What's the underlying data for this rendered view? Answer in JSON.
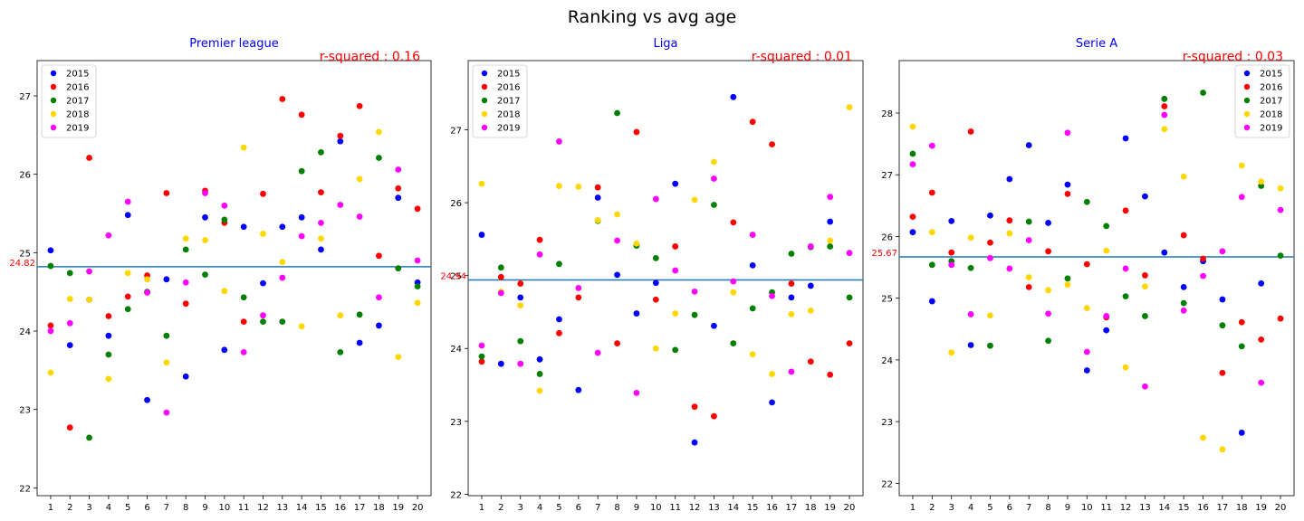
{
  "title": "Ranking vs avg age",
  "colors": {
    "2015": "#0000ff",
    "2016": "#ff0000",
    "2017": "#008000",
    "2018": "#ffd700",
    "2019": "#ff00ff",
    "mean_line": "#1f77b4",
    "subtitle": "#0000ff",
    "r_squared": "#ff0000"
  },
  "chart_data": [
    {
      "type": "scatter",
      "title": "Premier league",
      "r_squared_label": "r-squared : 0.16",
      "mean_value": 24.82,
      "mean_label": "24.82",
      "x": [
        1,
        2,
        3,
        4,
        5,
        6,
        7,
        8,
        9,
        10,
        11,
        12,
        13,
        14,
        15,
        16,
        17,
        18,
        19,
        20
      ],
      "xlim": [
        0.3,
        20.7
      ],
      "ylim": [
        21.9,
        27.45
      ],
      "yticks": [
        22,
        23,
        24,
        25,
        26,
        27
      ],
      "legend": "top-left",
      "series": [
        {
          "name": "2015",
          "values": [
            25.03,
            23.82,
            24.4,
            23.94,
            25.48,
            23.12,
            24.66,
            23.42,
            25.45,
            23.76,
            25.33,
            24.61,
            25.33,
            25.45,
            25.04,
            26.42,
            23.85,
            24.07,
            25.7,
            24.62
          ]
        },
        {
          "name": "2016",
          "values": [
            24.07,
            22.77,
            26.21,
            24.19,
            24.44,
            24.71,
            25.76,
            24.35,
            25.79,
            25.38,
            24.12,
            25.75,
            26.96,
            26.76,
            25.77,
            26.49,
            26.87,
            24.96,
            25.82,
            25.56
          ]
        },
        {
          "name": "2017",
          "values": [
            24.83,
            24.74,
            22.64,
            23.7,
            24.28,
            24.5,
            23.94,
            25.04,
            24.72,
            25.42,
            24.43,
            24.12,
            24.12,
            26.04,
            26.28,
            23.73,
            24.21,
            26.21,
            24.8,
            24.57
          ]
        },
        {
          "name": "2018",
          "values": [
            23.47,
            24.41,
            24.4,
            23.39,
            24.74,
            24.66,
            23.6,
            25.18,
            25.16,
            24.51,
            26.34,
            25.24,
            24.88,
            24.06,
            25.18,
            24.2,
            25.94,
            26.54,
            23.67,
            24.36
          ]
        },
        {
          "name": "2019",
          "values": [
            24.0,
            24.1,
            24.76,
            25.22,
            25.65,
            24.49,
            22.96,
            24.62,
            25.76,
            25.6,
            23.73,
            24.2,
            24.68,
            25.21,
            25.38,
            25.61,
            25.46,
            24.43,
            26.06,
            24.9
          ]
        }
      ]
    },
    {
      "type": "scatter",
      "title": "Liga",
      "r_squared_label": "r-squared : 0.01",
      "mean_value": 24.94,
      "mean_label": "24.94",
      "x": [
        1,
        2,
        3,
        4,
        5,
        6,
        7,
        8,
        9,
        10,
        11,
        12,
        13,
        14,
        15,
        16,
        17,
        18,
        19,
        20
      ],
      "xlim": [
        0.3,
        20.7
      ],
      "ylim": [
        21.98,
        27.95
      ],
      "yticks": [
        22,
        23,
        24,
        25,
        26,
        27
      ],
      "legend": "top-left",
      "series": [
        {
          "name": "2015",
          "values": [
            25.56,
            23.79,
            24.7,
            23.85,
            24.4,
            23.43,
            26.07,
            25.01,
            24.48,
            24.9,
            26.26,
            22.71,
            24.31,
            27.45,
            25.14,
            23.26,
            24.7,
            24.86,
            25.74,
            null
          ]
        },
        {
          "name": "2016",
          "values": [
            23.82,
            24.98,
            24.89,
            25.49,
            24.21,
            24.7,
            26.21,
            24.07,
            26.97,
            24.67,
            25.4,
            23.2,
            23.07,
            25.73,
            27.11,
            26.8,
            24.89,
            23.82,
            23.64,
            24.07
          ]
        },
        {
          "name": "2017",
          "values": [
            23.89,
            25.11,
            24.1,
            23.65,
            25.16,
            null,
            25.75,
            27.23,
            25.41,
            25.24,
            23.98,
            24.46,
            25.97,
            24.07,
            24.55,
            24.77,
            25.3,
            25.39,
            25.4,
            24.7
          ]
        },
        {
          "name": "2018",
          "values": [
            26.26,
            24.78,
            24.59,
            23.42,
            26.23,
            26.22,
            25.76,
            25.84,
            25.44,
            24.0,
            24.48,
            26.04,
            26.56,
            24.77,
            23.92,
            23.65,
            24.47,
            24.52,
            25.48,
            27.31
          ]
        },
        {
          "name": "2019",
          "values": [
            24.04,
            24.76,
            23.79,
            25.29,
            26.84,
            24.83,
            23.94,
            25.48,
            23.39,
            26.05,
            25.07,
            24.78,
            26.33,
            24.92,
            25.56,
            24.72,
            23.68,
            25.4,
            26.08,
            25.31
          ]
        }
      ]
    },
    {
      "type": "scatter",
      "title": "Serie A",
      "r_squared_label": "r-squared : 0.03",
      "mean_value": 25.67,
      "mean_label": "25.67",
      "x": [
        1,
        2,
        3,
        4,
        5,
        6,
        7,
        8,
        9,
        10,
        11,
        12,
        13,
        14,
        15,
        16,
        17,
        18,
        19,
        20
      ],
      "xlim": [
        0.3,
        20.7
      ],
      "ylim": [
        21.8,
        28.85
      ],
      "yticks": [
        22,
        23,
        24,
        25,
        26,
        27,
        28
      ],
      "legend": "top-right",
      "series": [
        {
          "name": "2015",
          "values": [
            26.07,
            24.95,
            26.25,
            24.24,
            26.34,
            26.93,
            27.48,
            26.22,
            26.84,
            23.83,
            24.48,
            27.59,
            26.65,
            25.74,
            25.18,
            25.6,
            24.98,
            22.82,
            25.24,
            null
          ]
        },
        {
          "name": "2016",
          "values": [
            26.32,
            26.71,
            25.74,
            27.7,
            25.9,
            26.26,
            25.18,
            25.76,
            26.69,
            25.55,
            24.69,
            26.42,
            25.37,
            28.11,
            26.02,
            25.64,
            23.79,
            24.61,
            24.33,
            24.67
          ]
        },
        {
          "name": "2017",
          "values": [
            27.34,
            25.54,
            25.6,
            25.49,
            24.23,
            null,
            26.24,
            24.31,
            25.32,
            26.56,
            26.17,
            25.03,
            24.71,
            28.23,
            24.92,
            28.33,
            24.56,
            24.22,
            26.82,
            25.69
          ]
        },
        {
          "name": "2018",
          "values": [
            27.78,
            26.07,
            24.12,
            25.98,
            24.72,
            26.05,
            25.34,
            25.13,
            25.22,
            24.84,
            25.77,
            23.88,
            25.19,
            27.74,
            26.97,
            22.74,
            22.55,
            27.15,
            26.89,
            26.78
          ]
        },
        {
          "name": "2019",
          "values": [
            27.17,
            27.47,
            25.54,
            24.74,
            25.65,
            25.48,
            25.94,
            24.75,
            27.68,
            24.13,
            24.71,
            25.48,
            23.57,
            27.97,
            24.8,
            25.36,
            25.76,
            26.64,
            23.63,
            26.43
          ]
        }
      ]
    }
  ]
}
